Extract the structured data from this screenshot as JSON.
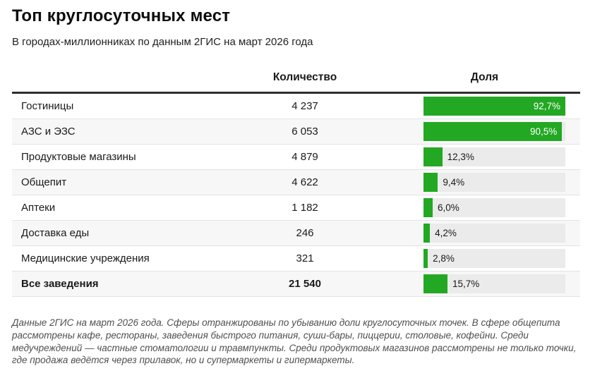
{
  "header": {
    "title": "Топ круглосуточных мест",
    "subtitle": "В городах-миллионниках по данным 2ГИС на март 2026 года"
  },
  "table": {
    "columns": {
      "count_label": "Количество",
      "share_label": "Доля"
    },
    "rows": [
      {
        "label": "Гостиницы",
        "count": "4 237",
        "share": "92,7%",
        "share_value": 92.7,
        "bold": false,
        "label_inside": true
      },
      {
        "label": "АЗС и ЭЗС",
        "count": "6 053",
        "share": "90,5%",
        "share_value": 90.5,
        "bold": false,
        "label_inside": true
      },
      {
        "label": "Продуктовые магазины",
        "count": "4 879",
        "share": "12,3%",
        "share_value": 12.3,
        "bold": false,
        "label_inside": false
      },
      {
        "label": "Общепит",
        "count": "4 622",
        "share": "9,4%",
        "share_value": 9.4,
        "bold": false,
        "label_inside": false
      },
      {
        "label": "Аптеки",
        "count": "1 182",
        "share": "6,0%",
        "share_value": 6.0,
        "bold": false,
        "label_inside": false
      },
      {
        "label": "Доставка еды",
        "count": "246",
        "share": "4,2%",
        "share_value": 4.2,
        "bold": false,
        "label_inside": false
      },
      {
        "label": "Медицинские учреждения",
        "count": "321",
        "share": "2,8%",
        "share_value": 2.8,
        "bold": false,
        "label_inside": false
      },
      {
        "label": "Все заведения",
        "count": "21 540",
        "share": "15,7%",
        "share_value": 15.7,
        "bold": true,
        "label_inside": false
      }
    ]
  },
  "footer": {
    "note": "Данные 2ГИС на март 2026 года. Сферы отранжированы по убыванию доли круглосуточных точек. В сфере общепита рассмотрены кафе, рестораны, заведения быстрого питания, суши-бары, пиццерии, столовые, кофейни. Среди медучреждений — частные стоматологии и травмпункты. Среди продуктовых магазинов рассмотрены не только точки, где продажа ведётся через прилавок, но и супермаркеты и гипермаркеты."
  },
  "colors": {
    "bar_fill_green": "#23a823",
    "bar_track_gray": "#ebebeb",
    "alt_row_gray": "#f7f7f7",
    "separator_gray": "#e3e3e3",
    "header_rule_dark": "#2e2e2e",
    "bar_label_inside": "#ffffff",
    "footnote_gray": "#4f4f4f"
  },
  "chart_data": {
    "type": "bar",
    "orientation": "horizontal",
    "title": "Топ круглосуточных мест",
    "subtitle": "В городах-миллионниках по данным 2ГИС на март 2026 года",
    "categories": [
      "Гостиницы",
      "АЗС и ЭЗС",
      "Продуктовые магазины",
      "Общепит",
      "Аптеки",
      "Доставка еды",
      "Медицинские учреждения",
      "Все заведения"
    ],
    "series": [
      {
        "name": "Количество",
        "values": [
          4237,
          6053,
          4879,
          4622,
          1182,
          246,
          321,
          21540
        ]
      },
      {
        "name": "Доля",
        "unit": "%",
        "values": [
          92.7,
          90.5,
          12.3,
          9.4,
          6.0,
          4.2,
          2.8,
          15.7
        ]
      }
    ],
    "bar_scale_max": 92.7,
    "xlim": [
      0,
      92.7
    ],
    "grid": false,
    "legend": false,
    "value_labels": "on-bar",
    "annotation": "Данные 2ГИС на март 2026 года. Сферы отранжированы по убыванию доли круглосуточных точек."
  }
}
